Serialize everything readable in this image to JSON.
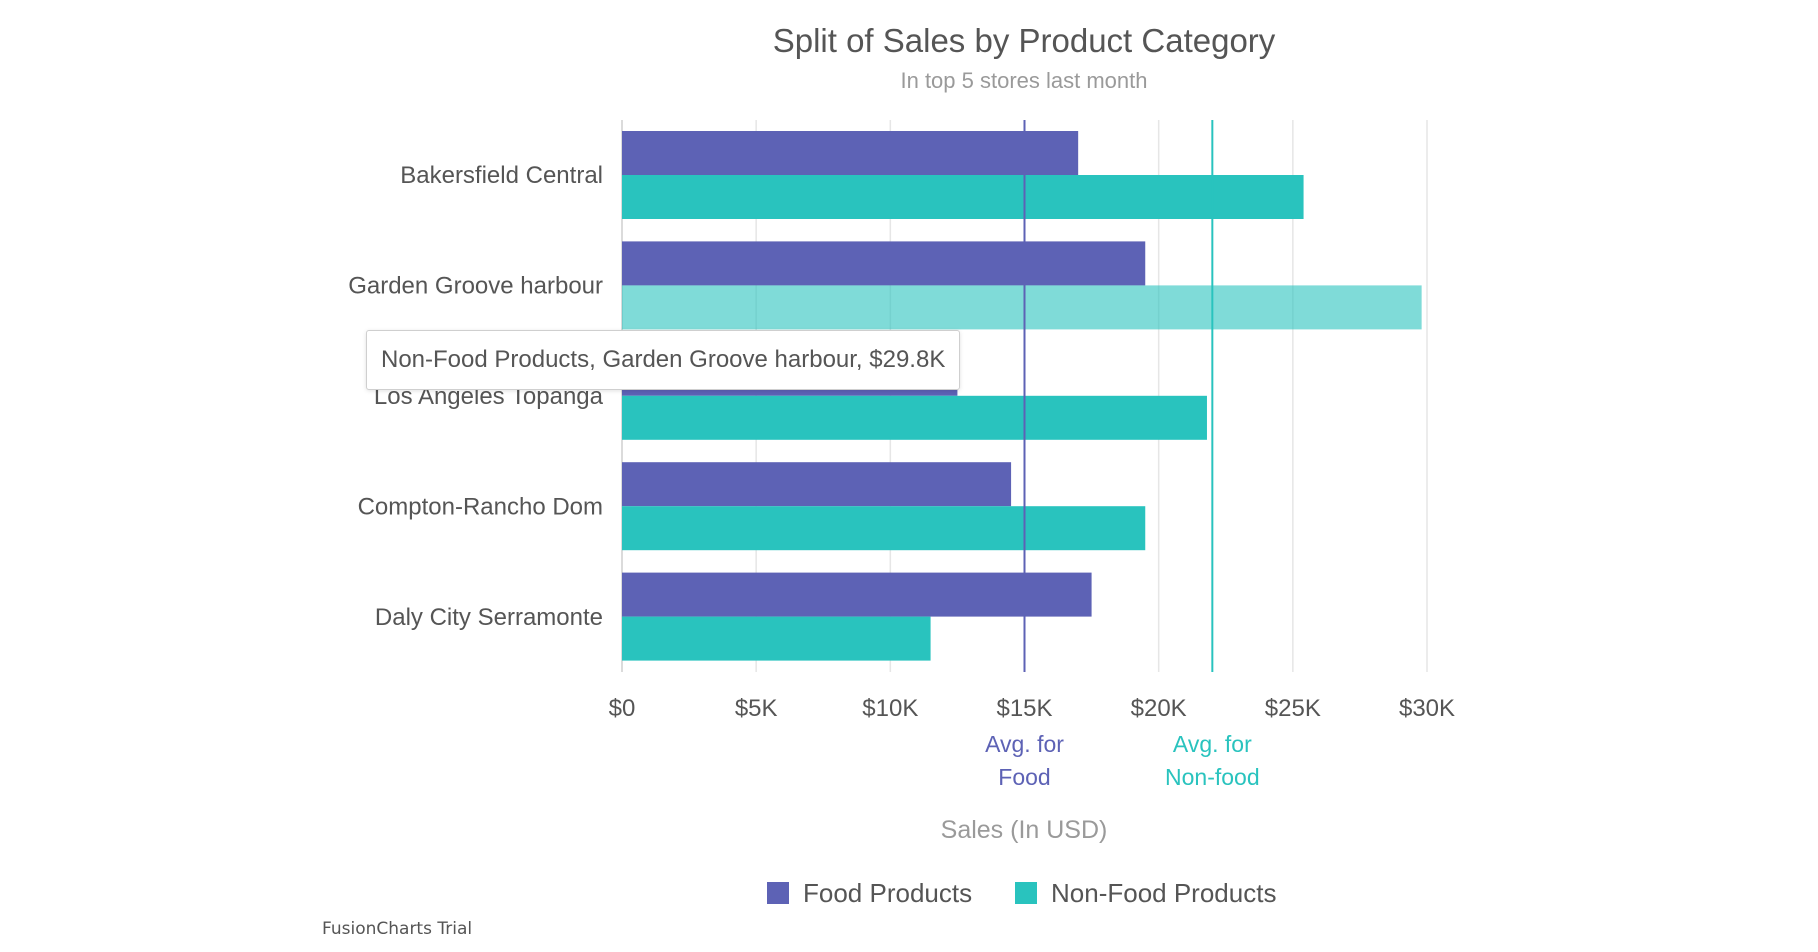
{
  "chart_data": {
    "type": "bar",
    "orientation": "horizontal",
    "title": "Split of Sales by Product Category",
    "subtitle": "In top 5 stores last month",
    "xlabel": "Sales (In USD)",
    "ylabel": "",
    "xlim": [
      0,
      30000
    ],
    "ticks": [
      {
        "value": 0,
        "label": "$0"
      },
      {
        "value": 5000,
        "label": "$5K"
      },
      {
        "value": 10000,
        "label": "$10K"
      },
      {
        "value": 15000,
        "label": "$15K"
      },
      {
        "value": 20000,
        "label": "$20K"
      },
      {
        "value": 25000,
        "label": "$25K"
      },
      {
        "value": 30000,
        "label": "$30K"
      }
    ],
    "grid": true,
    "categories": [
      "Bakersfield Central",
      "Garden Groove harbour",
      "Los Angeles Topanga",
      "Compton-Rancho Dom",
      "Daly City Serramonte"
    ],
    "series": [
      {
        "name": "Food Products",
        "color": "#5d62b5",
        "values": [
          17000,
          19500,
          12500,
          14500,
          17500
        ]
      },
      {
        "name": "Non-Food Products",
        "color": "#29c3be",
        "values": [
          25400,
          29800,
          21800,
          19500,
          11500
        ]
      }
    ],
    "trendlines": [
      {
        "value": 15000,
        "label_line1": "Avg. for",
        "label_line2": "Food",
        "color": "#5d62b5"
      },
      {
        "value": 22000,
        "label_line1": "Avg. for",
        "label_line2": "Non-food",
        "color": "#29c3be"
      }
    ],
    "legend_position": "bottom",
    "tooltip": {
      "text": "Non-Food Products, Garden Groove harbour, $29.8K",
      "category_index": 1,
      "series_index": 1
    },
    "watermark": "FusionCharts Trial"
  }
}
